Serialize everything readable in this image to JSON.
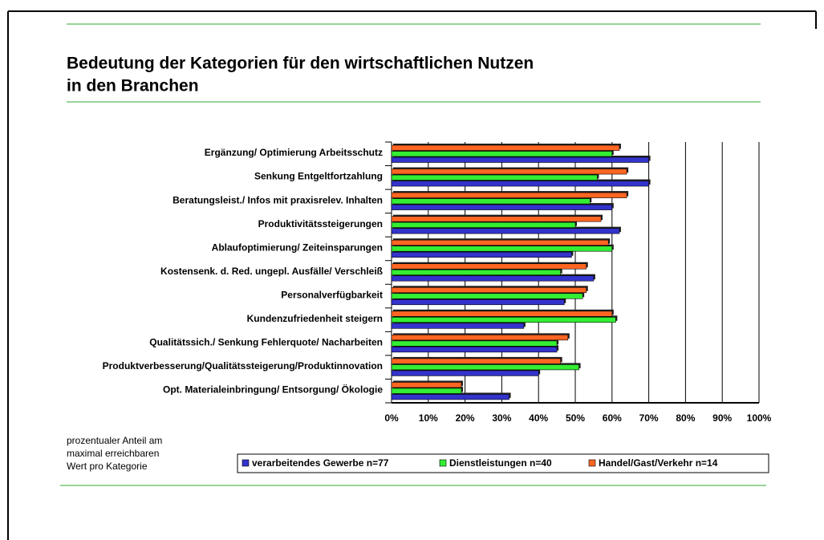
{
  "chart_data": {
    "type": "hbar",
    "title": [
      "Bedeutung der Kategorien für den wirtschaftlichen Nutzen",
      "in den Branchen"
    ],
    "categories": [
      "Ergänzung/ Optimierung Arbeitsschutz",
      "Senkung Entgeltfortzahlung",
      "Beratungsleist./ Infos mit praxisrelev. Inhalten",
      "Produktivitätssteigerungen",
      "Ablaufoptimierung/ Zeiteinsparungen",
      "Kostensenk. d. Red. ungepl. Ausfälle/ Verschleiß",
      "Personalverfügbarkeit",
      "Kundenzufriedenheit steigern",
      "Qualitätssich./ Senkung Fehlerquote/ Nacharbeiten",
      "Produktverbesserung/Qualitätssteigerung/Produktinnovation",
      "Opt. Materialeinbringung/ Entsorgung/ Ökologie"
    ],
    "series": [
      {
        "name": "verarbeitendes Gewerbe n=77",
        "color": "#3333cc",
        "values": [
          70,
          70,
          60,
          62,
          49,
          55,
          47,
          36,
          45,
          40,
          32
        ]
      },
      {
        "name": "Dienstleistungen n=40",
        "color": "#33ee33",
        "values": [
          60,
          56,
          54,
          50,
          60,
          46,
          52,
          61,
          45,
          51,
          19
        ]
      },
      {
        "name": "Handel/Gast/Verkehr n=14",
        "color": "#ff6622",
        "values": [
          62,
          64,
          64,
          57,
          59,
          53,
          53,
          60,
          48,
          46,
          19
        ]
      }
    ],
    "xlim": [
      0,
      100
    ],
    "xticks": [
      {
        "value": 0,
        "label": "0%"
      },
      {
        "value": 10,
        "label": "10%"
      },
      {
        "value": 20,
        "label": "20%"
      },
      {
        "value": 30,
        "label": "30%"
      },
      {
        "value": 40,
        "label": "40%"
      },
      {
        "value": 50,
        "label": "50%"
      },
      {
        "value": 60,
        "label": "60%"
      },
      {
        "value": 70,
        "label": "70%"
      },
      {
        "value": 80,
        "label": "80%"
      },
      {
        "value": 90,
        "label": "90%"
      },
      {
        "value": 100,
        "label": "100%"
      }
    ],
    "grid": true,
    "note": [
      "prozentualer Anteil am",
      "maximal erreichbaren",
      "Wert pro Kategorie"
    ]
  }
}
